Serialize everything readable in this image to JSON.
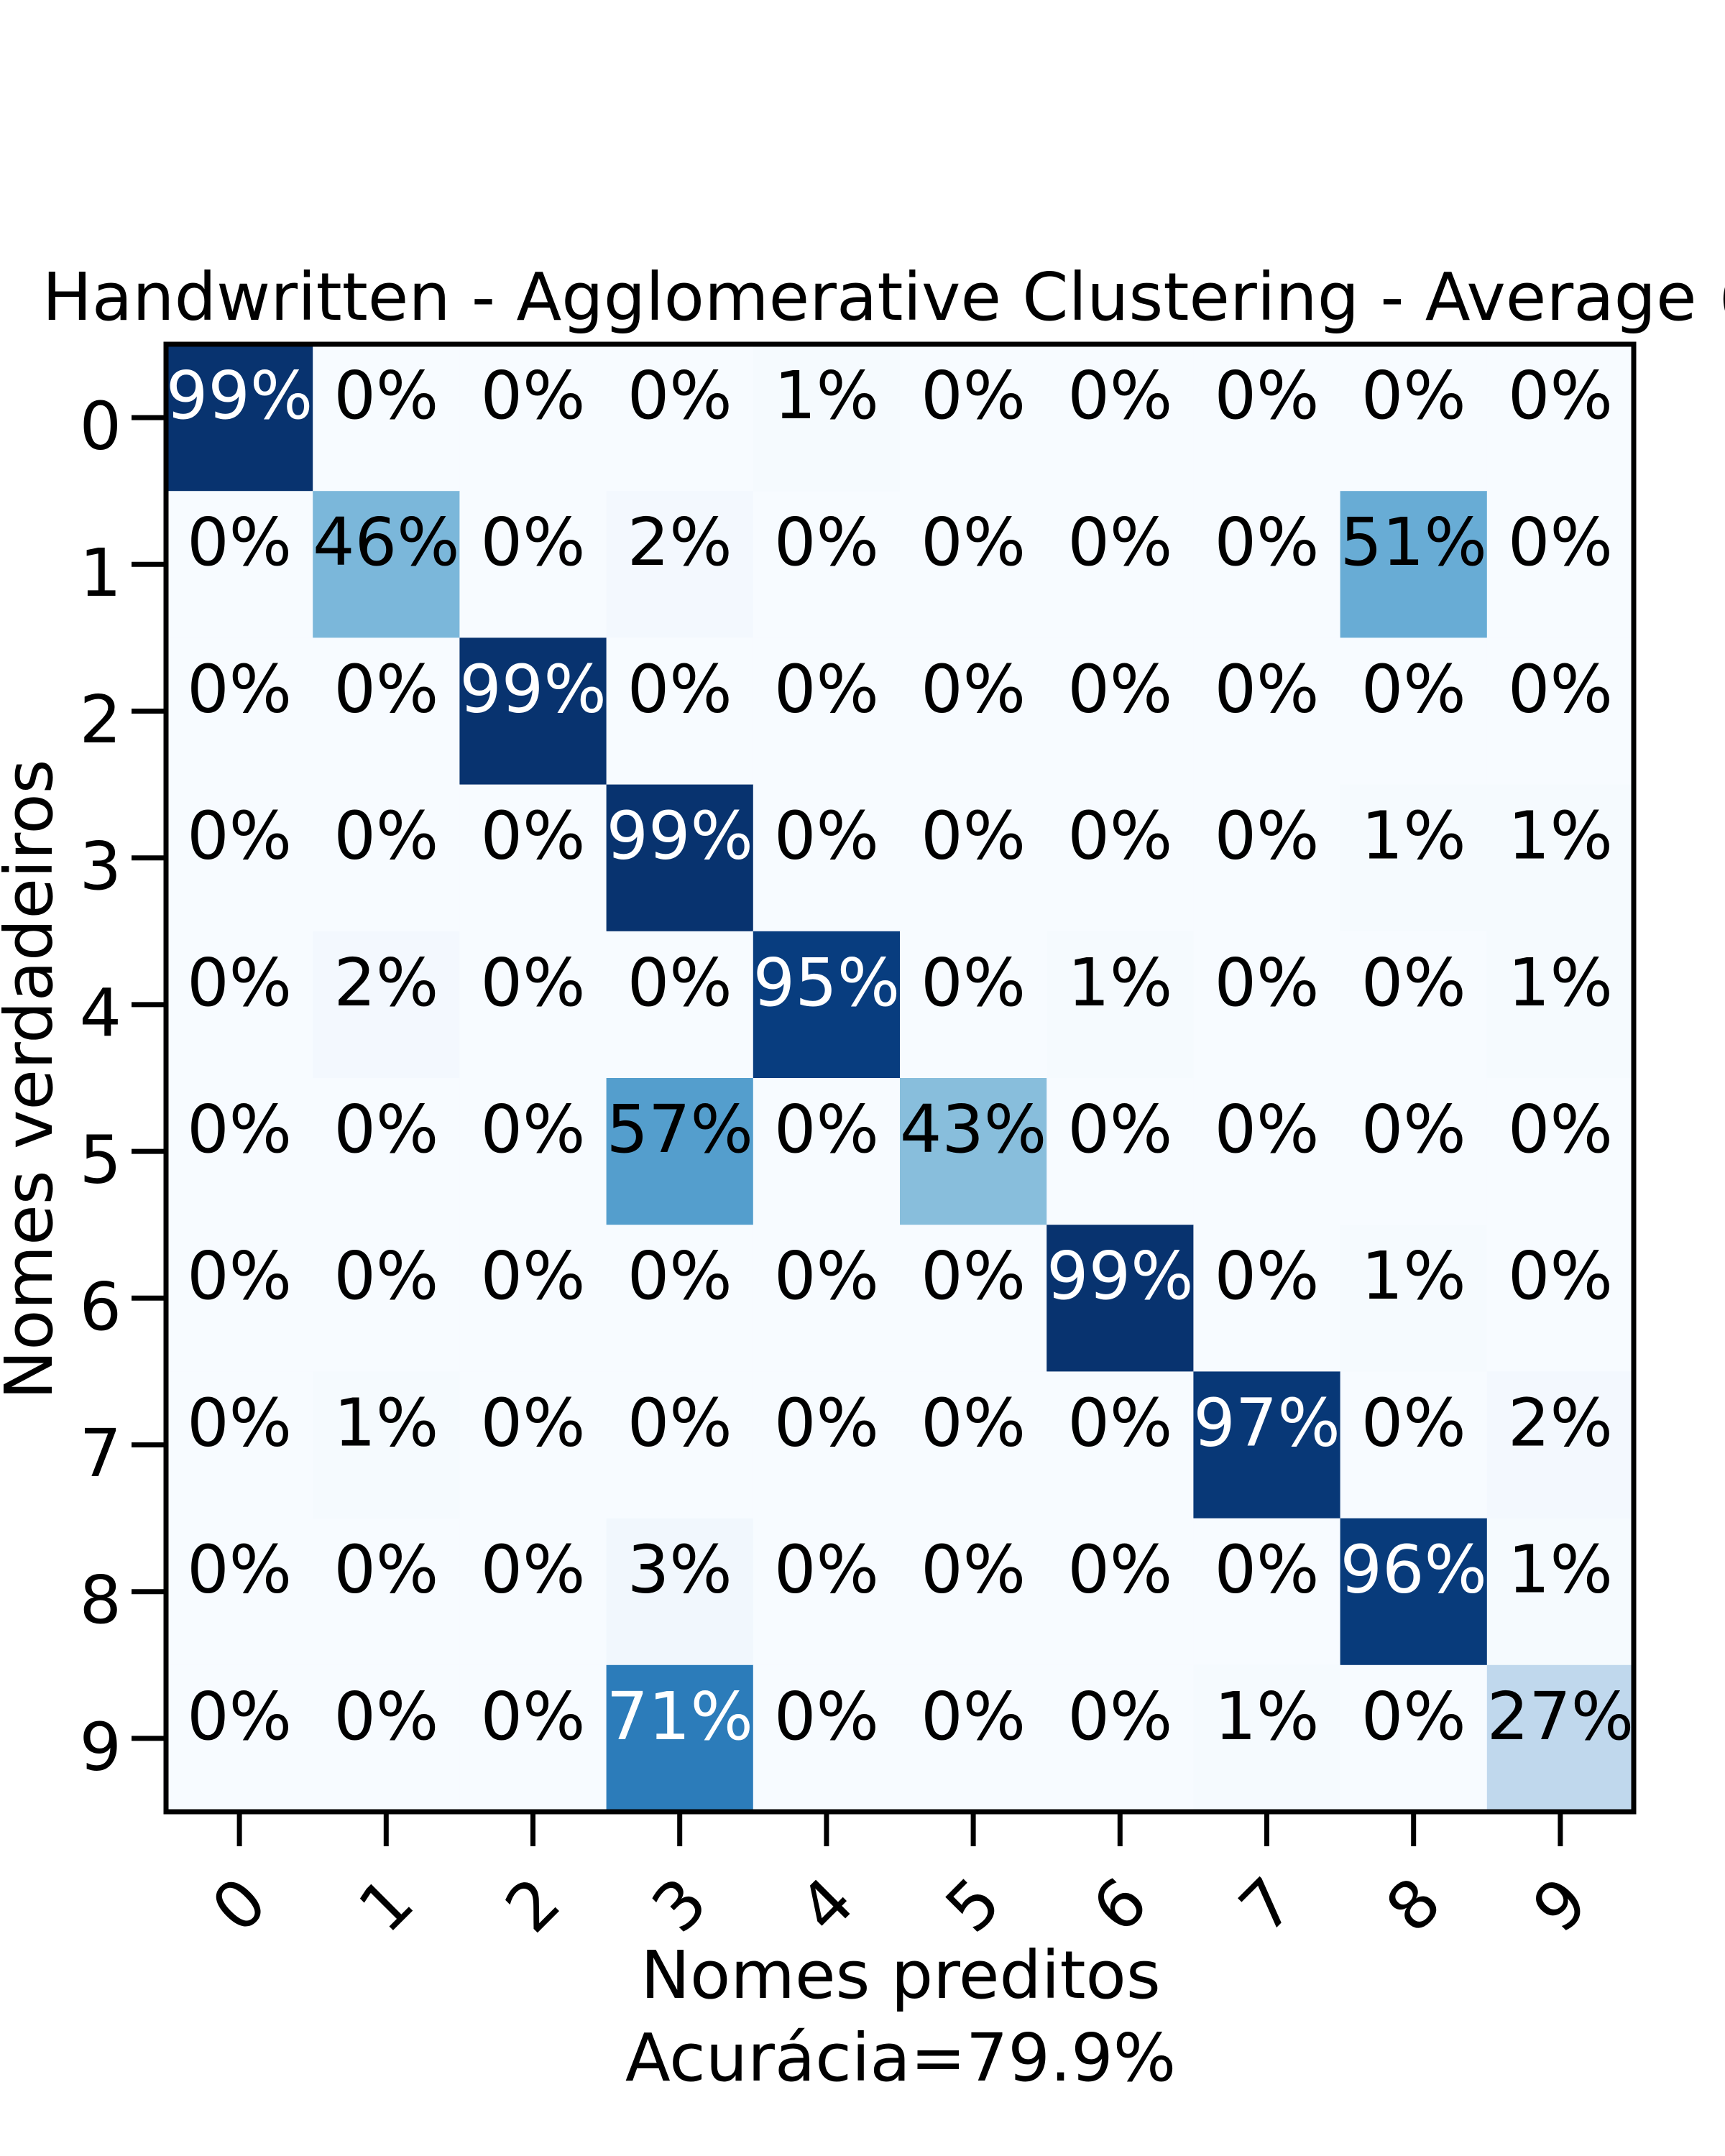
{
  "chart_data": {
    "type": "heatmap",
    "title": "Handwritten - Agglomerative Clustering - Average (Id",
    "xlabel": "Nomes preditos",
    "ylabel": "Nomes verdadeiros",
    "accuracy_label": "Acurácia=79.9%",
    "x_tick_labels": [
      "0",
      "1",
      "2",
      "3",
      "4",
      "5",
      "6",
      "7",
      "8",
      "9"
    ],
    "y_tick_labels": [
      "0",
      "1",
      "2",
      "3",
      "4",
      "5",
      "6",
      "7",
      "8",
      "9"
    ],
    "colormap": "Blues",
    "value_range": [
      0,
      100
    ],
    "matrix": [
      [
        99,
        0,
        0,
        0,
        1,
        0,
        0,
        0,
        0,
        0
      ],
      [
        0,
        46,
        0,
        2,
        0,
        0,
        0,
        0,
        51,
        0
      ],
      [
        0,
        0,
        99,
        0,
        0,
        0,
        0,
        0,
        0,
        0
      ],
      [
        0,
        0,
        0,
        99,
        0,
        0,
        0,
        0,
        1,
        1
      ],
      [
        0,
        2,
        0,
        0,
        95,
        0,
        1,
        0,
        0,
        1
      ],
      [
        0,
        0,
        0,
        57,
        0,
        43,
        0,
        0,
        0,
        0
      ],
      [
        0,
        0,
        0,
        0,
        0,
        0,
        99,
        0,
        1,
        0
      ],
      [
        0,
        1,
        0,
        0,
        0,
        0,
        0,
        97,
        0,
        2
      ],
      [
        0,
        0,
        0,
        3,
        0,
        0,
        0,
        0,
        96,
        1
      ],
      [
        0,
        0,
        0,
        71,
        0,
        0,
        0,
        1,
        0,
        27
      ]
    ],
    "cell_labels": [
      [
        "99%",
        "0%",
        "0%",
        "0%",
        "1%",
        "0%",
        "0%",
        "0%",
        "0%",
        "0%"
      ],
      [
        "0%",
        "46%",
        "0%",
        "2%",
        "0%",
        "0%",
        "0%",
        "0%",
        "51%",
        "0%"
      ],
      [
        "0%",
        "0%",
        "99%",
        "0%",
        "0%",
        "0%",
        "0%",
        "0%",
        "0%",
        "0%"
      ],
      [
        "0%",
        "0%",
        "0%",
        "99%",
        "0%",
        "0%",
        "0%",
        "0%",
        "1%",
        "1%"
      ],
      [
        "0%",
        "2%",
        "0%",
        "0%",
        "95%",
        "0%",
        "1%",
        "0%",
        "0%",
        "1%"
      ],
      [
        "0%",
        "0%",
        "0%",
        "57%",
        "0%",
        "43%",
        "0%",
        "0%",
        "0%",
        "0%"
      ],
      [
        "0%",
        "0%",
        "0%",
        "0%",
        "0%",
        "0%",
        "99%",
        "0%",
        "1%",
        "0%"
      ],
      [
        "0%",
        "1%",
        "0%",
        "0%",
        "0%",
        "0%",
        "0%",
        "97%",
        "0%",
        "2%"
      ],
      [
        "0%",
        "0%",
        "0%",
        "3%",
        "0%",
        "0%",
        "0%",
        "0%",
        "96%",
        "1%"
      ],
      [
        "0%",
        "0%",
        "0%",
        "71%",
        "0%",
        "0%",
        "0%",
        "1%",
        "0%",
        "27%"
      ]
    ]
  }
}
